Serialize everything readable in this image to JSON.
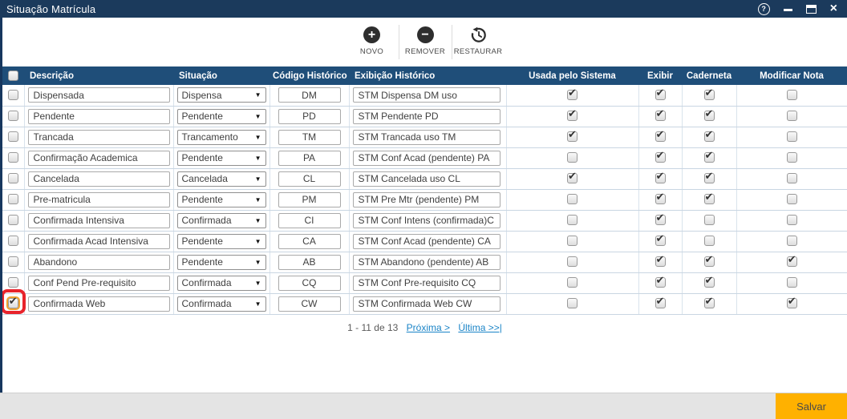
{
  "window": {
    "title": "Situação Matrícula",
    "controls": {
      "help_icon": "?",
      "close_icon": "×"
    }
  },
  "toolbar": {
    "buttons": [
      {
        "label": "NOVO",
        "icon": "plus-circle-icon",
        "icon_glyph": "+"
      },
      {
        "label": "REMOVER",
        "icon": "minus-circle-icon",
        "icon_glyph": "−"
      },
      {
        "label": "RESTAURAR",
        "icon": "restore-history-icon"
      }
    ]
  },
  "table": {
    "headers": [
      "",
      "Descrição",
      "Situação",
      "Código Histórico",
      "Exibição Histórico",
      "Usada pelo Sistema",
      "Exibir",
      "Caderneta",
      "Modificar Nota"
    ],
    "rows": [
      {
        "selected": false,
        "highlighted": false,
        "descricao": "Dispensada",
        "situacao": "Dispensa",
        "codigo_historico": "DM",
        "exibicao_historico": "STM Dispensa DM uso",
        "usada_pelo_sistema": true,
        "exibir": true,
        "caderneta": true,
        "modificar_nota": false
      },
      {
        "selected": false,
        "highlighted": false,
        "descricao": "Pendente",
        "situacao": "Pendente",
        "codigo_historico": "PD",
        "exibicao_historico": "STM Pendente PD",
        "usada_pelo_sistema": true,
        "exibir": true,
        "caderneta": true,
        "modificar_nota": false
      },
      {
        "selected": false,
        "highlighted": false,
        "descricao": "Trancada",
        "situacao": "Trancamento",
        "codigo_historico": "TM",
        "exibicao_historico": "STM Trancada uso TM",
        "usada_pelo_sistema": true,
        "exibir": true,
        "caderneta": true,
        "modificar_nota": false
      },
      {
        "selected": false,
        "highlighted": false,
        "descricao": "Confirmação Academica",
        "situacao": "Pendente",
        "codigo_historico": "PA",
        "exibicao_historico": "STM Conf Acad (pendente) PA",
        "usada_pelo_sistema": false,
        "exibir": true,
        "caderneta": true,
        "modificar_nota": false
      },
      {
        "selected": false,
        "highlighted": false,
        "descricao": "Cancelada",
        "situacao": "Cancelada",
        "codigo_historico": "CL",
        "exibicao_historico": "STM Cancelada uso CL",
        "usada_pelo_sistema": true,
        "exibir": true,
        "caderneta": true,
        "modificar_nota": false
      },
      {
        "selected": false,
        "highlighted": false,
        "descricao": "Pre-matricula",
        "situacao": "Pendente",
        "codigo_historico": "PM",
        "exibicao_historico": "STM Pre Mtr (pendente) PM",
        "usada_pelo_sistema": false,
        "exibir": true,
        "caderneta": true,
        "modificar_nota": false
      },
      {
        "selected": false,
        "highlighted": false,
        "descricao": "Confirmada Intensiva",
        "situacao": "Confirmada",
        "codigo_historico": "CI",
        "exibicao_historico": "STM Conf Intens (confirmada)CI",
        "usada_pelo_sistema": false,
        "exibir": true,
        "caderneta": false,
        "modificar_nota": false
      },
      {
        "selected": false,
        "highlighted": false,
        "descricao": "Confirmada Acad Intensiva",
        "situacao": "Pendente",
        "codigo_historico": "CA",
        "exibicao_historico": "STM Conf Acad (pendente) CA",
        "usada_pelo_sistema": false,
        "exibir": true,
        "caderneta": false,
        "modificar_nota": false
      },
      {
        "selected": false,
        "highlighted": false,
        "descricao": "Abandono",
        "situacao": "Pendente",
        "codigo_historico": "AB",
        "exibicao_historico": "STM Abandono (pendente) AB",
        "usada_pelo_sistema": false,
        "exibir": true,
        "caderneta": true,
        "modificar_nota": true
      },
      {
        "selected": false,
        "highlighted": false,
        "descricao": "Conf Pend Pre-requisito",
        "situacao": "Confirmada",
        "codigo_historico": "CQ",
        "exibicao_historico": "STM Conf Pre-requisito CQ",
        "usada_pelo_sistema": false,
        "exibir": true,
        "caderneta": true,
        "modificar_nota": false
      },
      {
        "selected": true,
        "highlighted": true,
        "descricao": "Confirmada Web",
        "situacao": "Confirmada",
        "codigo_historico": "CW",
        "exibicao_historico": "STM Confirmada Web CW",
        "usada_pelo_sistema": false,
        "exibir": true,
        "caderneta": true,
        "modificar_nota": true
      }
    ]
  },
  "pagination": {
    "info": "1 - 11 de 13",
    "next_label": "Próxima >",
    "last_label": "Última >>|"
  },
  "footer": {
    "save_label": "Salvar"
  },
  "colors": {
    "titlebar": "#1B3A5C",
    "table_header": "#1F4E79",
    "save_button": "#FFB100",
    "link": "#1A84C7",
    "highlight_red": "#E8232B",
    "highlight_focus_orange": "#F0A12E"
  }
}
